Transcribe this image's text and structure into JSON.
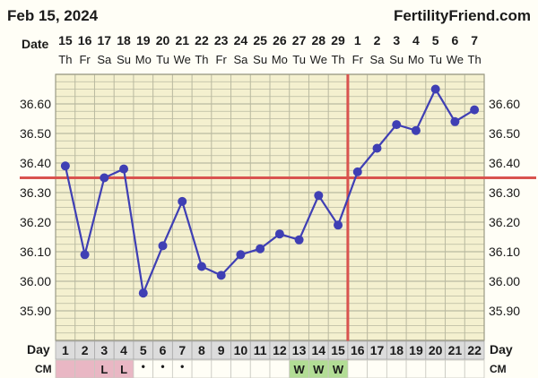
{
  "header": {
    "date_label": "Feb 15, 2024",
    "site_name": "FertilityFriend.com"
  },
  "labels": {
    "date": "Date",
    "day": "Day",
    "cm": "CM"
  },
  "colors": {
    "line": "#3f3fb4",
    "coverline": "#d9534f",
    "grid": "#b9b9a0",
    "plot_bg": "#f4f0cf",
    "cm_pink": "#e9b7c4",
    "cm_green": "#b2dd95",
    "day_bg": "#dcdcdc"
  },
  "chart_data": {
    "type": "line",
    "title": "",
    "xlabel": "Day",
    "ylabel": "",
    "ylim": [
      35.8,
      36.7
    ],
    "yticks": [
      "35.90",
      "36.00",
      "36.10",
      "36.20",
      "36.30",
      "36.40",
      "36.50",
      "36.60"
    ],
    "dates": [
      "15",
      "16",
      "17",
      "18",
      "19",
      "20",
      "21",
      "22",
      "23",
      "24",
      "25",
      "26",
      "27",
      "28",
      "29",
      "1",
      "2",
      "3",
      "4",
      "5",
      "6",
      "7"
    ],
    "weekdays": [
      "Th",
      "Fr",
      "Sa",
      "Su",
      "Mo",
      "Tu",
      "We",
      "Th",
      "Fr",
      "Sa",
      "Su",
      "Mo",
      "Tu",
      "We",
      "Th",
      "Fr",
      "Sa",
      "Su",
      "Mo",
      "Tu",
      "We",
      "Th"
    ],
    "days": [
      1,
      2,
      3,
      4,
      5,
      6,
      7,
      8,
      9,
      10,
      11,
      12,
      13,
      14,
      15,
      16,
      17,
      18,
      19,
      20,
      21,
      22
    ],
    "series": [
      {
        "values": [
          36.39,
          36.09,
          36.35,
          36.38,
          35.96,
          36.12,
          36.27,
          36.05,
          36.02,
          36.09,
          36.11,
          36.16,
          36.14,
          36.29,
          36.19,
          36.37,
          36.45,
          36.53,
          36.51,
          36.65,
          36.54,
          36.58
        ]
      }
    ],
    "coverline": 36.35,
    "ovulation_day": 15,
    "cm": [
      {
        "text": "",
        "color": "pink"
      },
      {
        "text": "",
        "color": "pink"
      },
      {
        "text": "L",
        "color": "pink"
      },
      {
        "text": "L",
        "color": "pink"
      },
      {
        "text": "•",
        "color": ""
      },
      {
        "text": "•",
        "color": ""
      },
      {
        "text": "•",
        "color": ""
      },
      {
        "text": "",
        "color": ""
      },
      {
        "text": "",
        "color": ""
      },
      {
        "text": "",
        "color": ""
      },
      {
        "text": "",
        "color": ""
      },
      {
        "text": "",
        "color": ""
      },
      {
        "text": "W",
        "color": "green"
      },
      {
        "text": "W",
        "color": "green"
      },
      {
        "text": "W",
        "color": "green"
      },
      {
        "text": "",
        "color": ""
      },
      {
        "text": "",
        "color": ""
      },
      {
        "text": "",
        "color": ""
      },
      {
        "text": "",
        "color": ""
      },
      {
        "text": "",
        "color": ""
      },
      {
        "text": "",
        "color": ""
      },
      {
        "text": "",
        "color": ""
      }
    ]
  }
}
